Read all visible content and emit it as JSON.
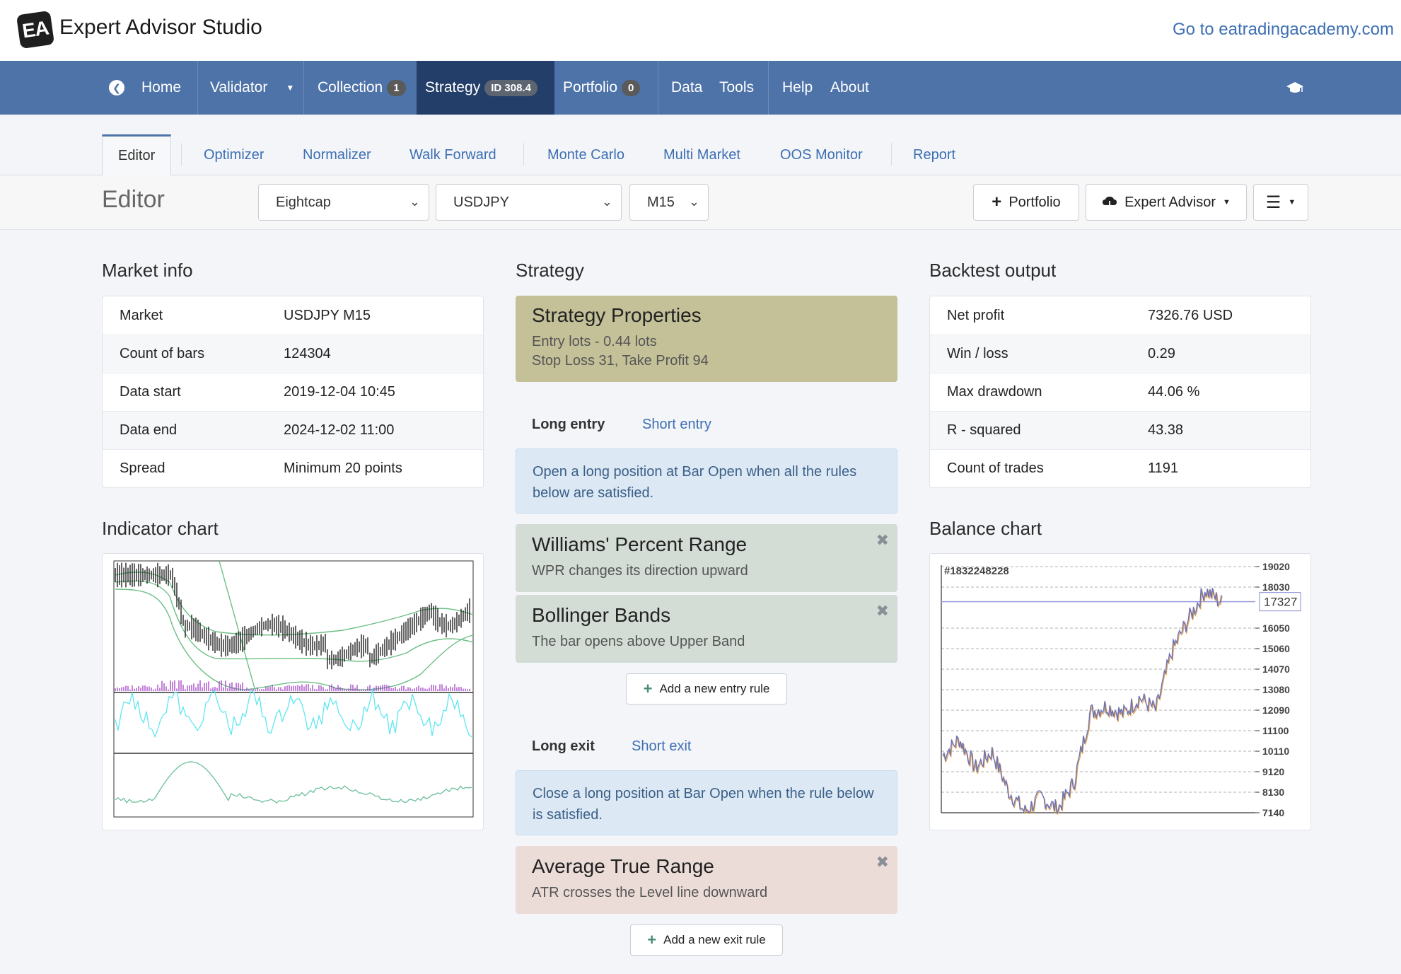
{
  "header": {
    "app_title": "Expert Advisor Studio",
    "logo_text": "EA",
    "external_link": "Go to eatradingacademy.com"
  },
  "navbar": {
    "items": [
      {
        "label": "Home"
      },
      {
        "label": "Validator"
      },
      {
        "label": "Collection",
        "badge": "1"
      },
      {
        "label": "Strategy",
        "badge": "ID 308.4"
      },
      {
        "label": "Portfolio",
        "badge": "0"
      },
      {
        "label": "Data"
      },
      {
        "label": "Tools"
      },
      {
        "label": "Help"
      },
      {
        "label": "About"
      }
    ]
  },
  "tabs": [
    "Editor",
    "Optimizer",
    "Normalizer",
    "Walk Forward",
    "Monte Carlo",
    "Multi Market",
    "OOS Monitor",
    "Report"
  ],
  "toolbar": {
    "title": "Editor",
    "broker": "Eightcap",
    "symbol": "USDJPY",
    "timeframe": "M15",
    "portfolio_button": "Portfolio",
    "ea_button": "Expert Advisor"
  },
  "market_info": {
    "heading": "Market info",
    "rows": [
      {
        "label": "Market",
        "value": "USDJPY M15"
      },
      {
        "label": "Count of bars",
        "value": "124304"
      },
      {
        "label": "Data start",
        "value": "2019-12-04 10:45"
      },
      {
        "label": "Data end",
        "value": "2024-12-02 11:00"
      },
      {
        "label": "Spread",
        "value": "Minimum 20 points"
      }
    ]
  },
  "indicator_chart": {
    "heading": "Indicator chart"
  },
  "strategy": {
    "heading": "Strategy",
    "properties": {
      "title": "Strategy Properties",
      "line1": "Entry lots - 0.44 lots",
      "line2": "Stop Loss 31, Take Profit 94"
    },
    "entry_tabs": {
      "long": "Long entry",
      "short": "Short entry"
    },
    "entry_info": "Open a long position at Bar Open when all the rules below are satisfied.",
    "entry_rules": [
      {
        "title": "Williams' Percent Range",
        "desc": "WPR changes its direction upward"
      },
      {
        "title": "Bollinger Bands",
        "desc": "The bar opens above Upper Band"
      }
    ],
    "add_entry": "Add a new entry rule",
    "exit_tabs": {
      "long": "Long exit",
      "short": "Short exit"
    },
    "exit_info": "Close a long position at Bar Open when the rule below is satisfied.",
    "exit_rules": [
      {
        "title": "Average True Range",
        "desc": "ATR crosses the Level line downward"
      }
    ],
    "add_exit": "Add a new exit rule"
  },
  "backtest": {
    "heading": "Backtest output",
    "rows": [
      {
        "label": "Net profit",
        "value": "7326.76 USD"
      },
      {
        "label": "Win / loss",
        "value": "0.29"
      },
      {
        "label": "Max drawdown",
        "value": "44.06 %"
      },
      {
        "label": "R - squared",
        "value": "43.38"
      },
      {
        "label": "Count of trades",
        "value": "1191"
      }
    ]
  },
  "balance_chart": {
    "heading": "Balance chart",
    "chart_data": {
      "type": "line",
      "title": "#1832248228",
      "y_ticks": [
        19020,
        18030,
        16050,
        15060,
        14070,
        13080,
        12090,
        11100,
        10110,
        9120,
        8130,
        7140
      ],
      "current_value": "17327",
      "ylim": [
        7140,
        19020
      ],
      "grid": true,
      "y_axis_side": "right",
      "series": [
        {
          "values": [
            9900,
            10700,
            9300,
            10100,
            8200,
            7200,
            7900,
            7300,
            8600,
            12000,
            12300,
            11900,
            12700,
            12100,
            15000,
            16500,
            17900,
            17300
          ]
        }
      ]
    }
  },
  "colors": {
    "navbar": "#4e73a8",
    "nav_active": "#243e6a",
    "link": "#3d6fb3",
    "properties_card": "#c4c199",
    "entry_rule_card": "#d3ddd6",
    "exit_rule_card": "#ecdcd7",
    "info_box": "#dce9f5"
  },
  "icons": {
    "back": "arrow-left-circle-icon",
    "graduation": "graduation-cap-icon",
    "plus": "plus-icon",
    "cloud": "cloud-download-icon",
    "menu": "hamburger-menu-icon",
    "close": "close-icon"
  }
}
